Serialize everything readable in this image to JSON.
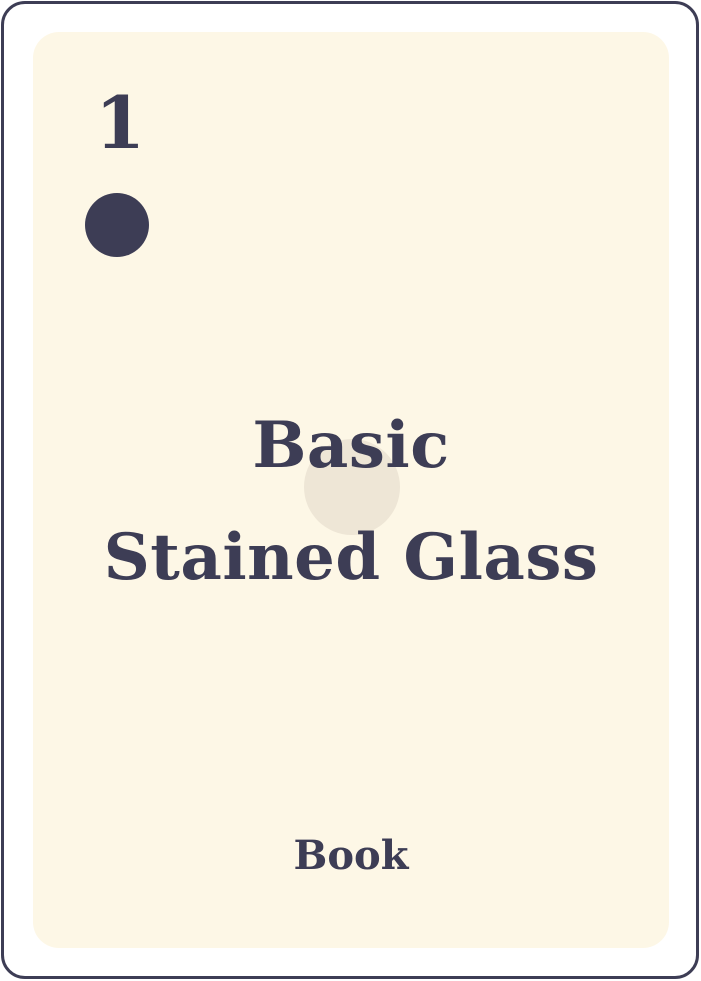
{
  "card": {
    "rank": "1",
    "title_line_1": "Basic",
    "title_line_2": "Stained Glass",
    "type": "Book",
    "pip_shape": "circle",
    "colors": {
      "ink": "#3d3d55",
      "face": "#fdf7e6",
      "border": "#3d3d55",
      "watermark": "#ebe3d2"
    }
  }
}
